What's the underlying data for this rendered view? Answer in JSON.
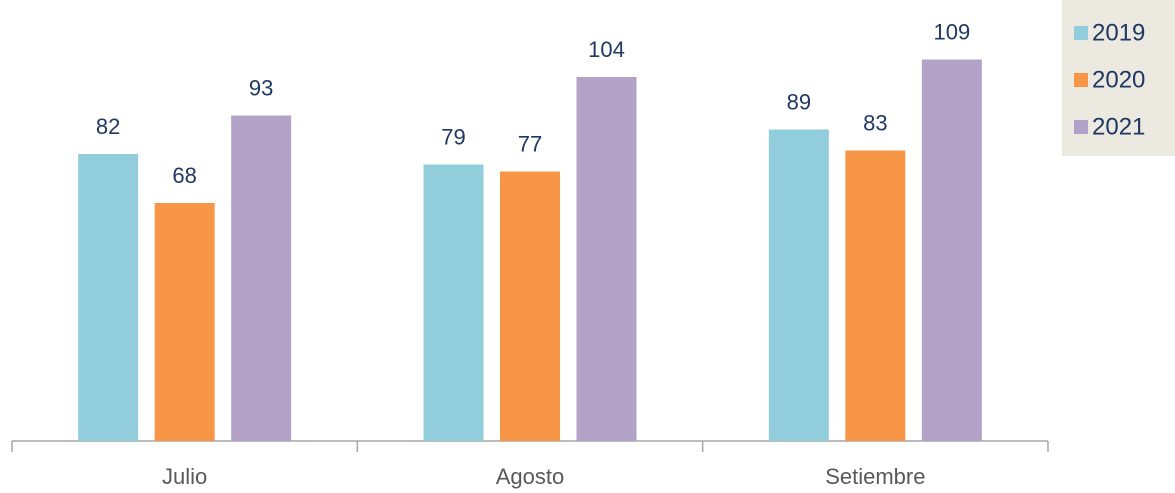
{
  "chart_data": {
    "type": "bar",
    "categories": [
      "Julio",
      "Agosto",
      "Setiembre"
    ],
    "series": [
      {
        "name": "2019",
        "color": "#92cddc",
        "values": [
          82,
          79,
          89
        ]
      },
      {
        "name": "2020",
        "color": "#f79646",
        "values": [
          68,
          77,
          83
        ]
      },
      {
        "name": "2021",
        "color": "#b2a2c7",
        "values": [
          93,
          104,
          109
        ]
      }
    ],
    "legend": "top-right"
  }
}
